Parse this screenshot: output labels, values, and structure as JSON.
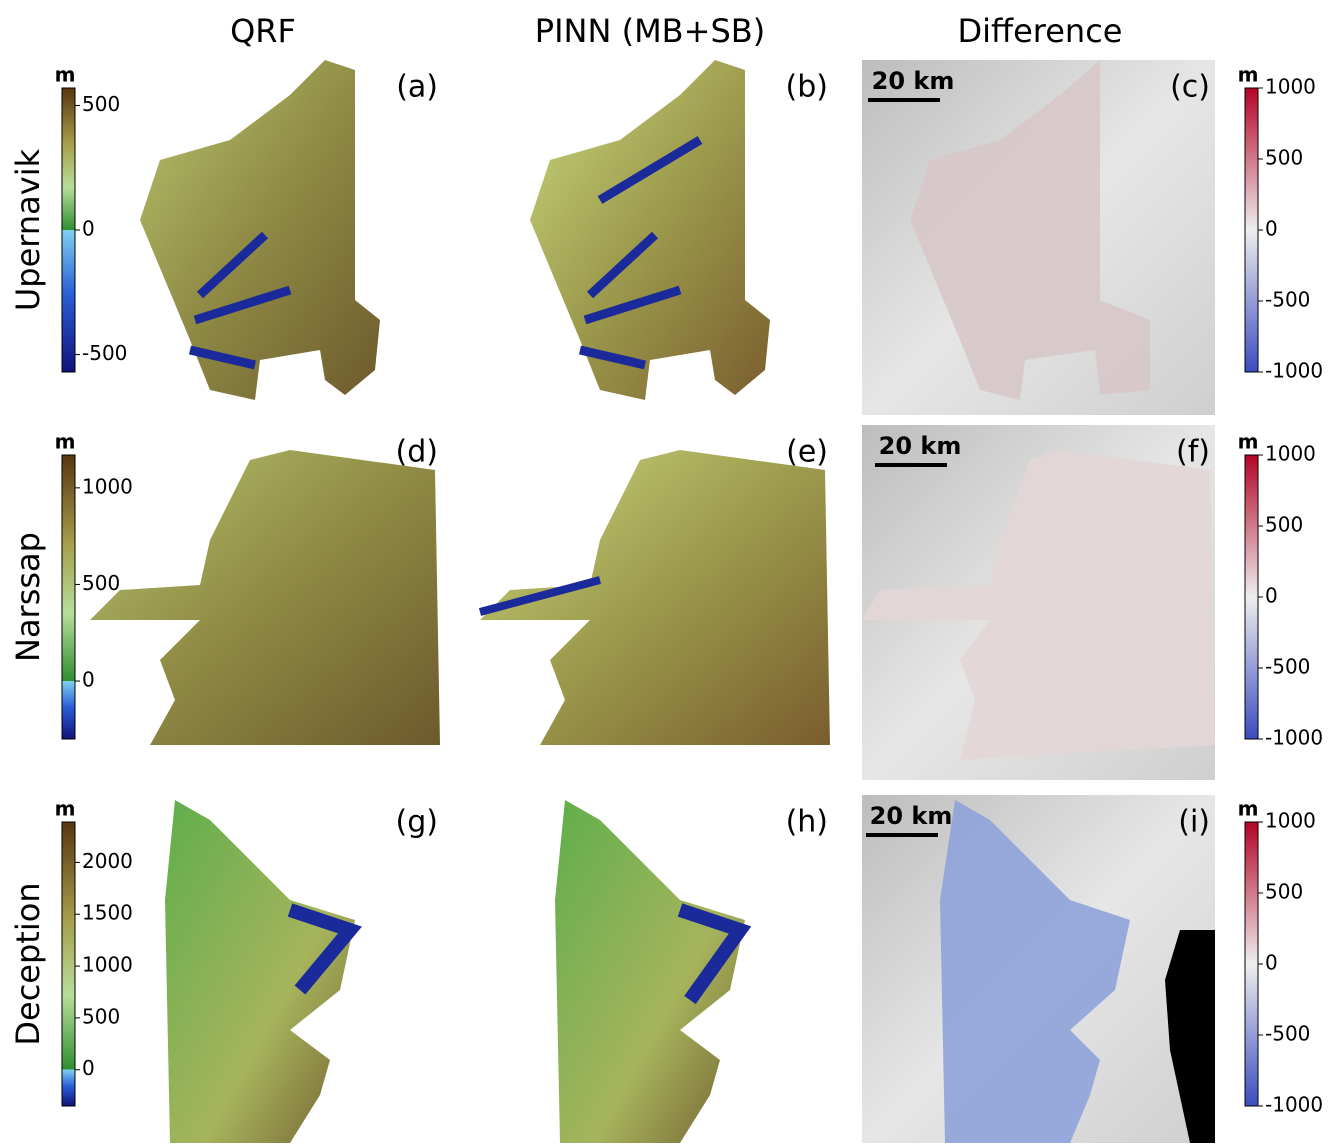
{
  "columns": [
    "QRF",
    "PINN (MB+SB)",
    "Difference"
  ],
  "rows": [
    {
      "name": "Upernavik",
      "panels": [
        "(a)",
        "(b)",
        "(c)"
      ],
      "scale_bar": "20 km",
      "elevation_bar": {
        "unit": "m",
        "lim": [
          -570,
          570
        ],
        "ticks": [
          -500,
          0,
          500
        ]
      },
      "difference_bar": {
        "unit": "m",
        "lim": [
          -1000,
          1000
        ],
        "ticks": [
          -1000,
          -500,
          0,
          500,
          1000
        ]
      }
    },
    {
      "name": "Narssap",
      "panels": [
        "(d)",
        "(e)",
        "(f)"
      ],
      "scale_bar": "20 km",
      "elevation_bar": {
        "unit": "m",
        "lim": [
          -300,
          1170
        ],
        "ticks": [
          0,
          500,
          1000
        ]
      },
      "difference_bar": {
        "unit": "m",
        "lim": [
          -1000,
          1000
        ],
        "ticks": [
          -1000,
          -500,
          0,
          500,
          1000
        ]
      }
    },
    {
      "name": "Deception",
      "panels": [
        "(g)",
        "(h)",
        "(i)"
      ],
      "scale_bar": "20 km",
      "elevation_bar": {
        "unit": "m",
        "lim": [
          -350,
          2390
        ],
        "ticks": [
          0,
          500,
          1000,
          1500,
          2000
        ]
      },
      "difference_bar": {
        "unit": "m",
        "lim": [
          -1000,
          1000
        ],
        "ticks": [
          -1000,
          -500,
          0,
          500,
          1000
        ]
      }
    }
  ]
}
